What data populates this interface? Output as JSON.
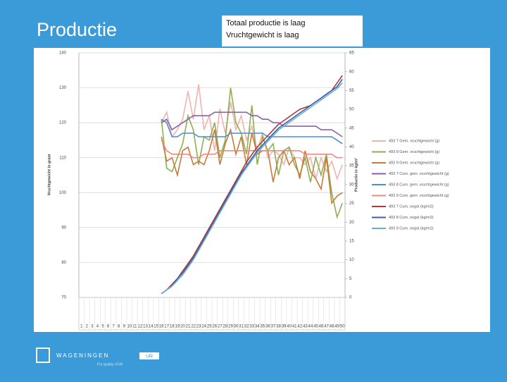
{
  "chart_data": {
    "type": "line",
    "title": "Productie",
    "annotations": [
      "Totaal productie is laag",
      "Vruchtgewicht is laag"
    ],
    "ylabel": "Vruchtgewicht in gram",
    "y2label": "Productie in kg/m²",
    "categories": [
      "1",
      "2",
      "3",
      "4",
      "5",
      "6",
      "7",
      "8",
      "9",
      "10",
      "11",
      "12",
      "13",
      "14",
      "15",
      "16",
      "17",
      "18",
      "19",
      "20",
      "21",
      "22",
      "23",
      "24",
      "25",
      "26",
      "27",
      "28",
      "29",
      "30",
      "31",
      "32",
      "33",
      "34",
      "35",
      "36",
      "37",
      "38",
      "39",
      "40",
      "41",
      "42",
      "43",
      "44",
      "45",
      "46",
      "47",
      "48",
      "49",
      "50"
    ],
    "ylim": [
      70,
      140
    ],
    "yticks": [
      70,
      80,
      90,
      100,
      110,
      120,
      130,
      140
    ],
    "y2lim": [
      0,
      65
    ],
    "y2ticks": [
      0,
      5,
      10,
      15,
      20,
      25,
      30,
      35,
      40,
      45,
      50,
      55,
      60,
      65
    ],
    "grid": true,
    "series": [
      {
        "name": "493 7 Gem. vruchtgewicht (g)",
        "color": "#f0b4b0",
        "values": [
          null,
          null,
          null,
          null,
          null,
          null,
          null,
          null,
          null,
          null,
          null,
          null,
          null,
          null,
          null,
          120,
          123,
          116,
          118,
          121,
          129,
          121,
          131,
          118,
          122,
          112,
          124,
          117,
          126,
          118,
          122,
          115,
          119,
          112,
          117,
          110,
          112,
          111,
          108,
          113,
          110,
          110,
          108,
          110,
          104,
          110,
          106,
          109,
          104,
          108
        ]
      },
      {
        "name": "493 8 Gem. vruchtgewicht (g)",
        "color": "#8cb050",
        "values": [
          null,
          null,
          null,
          null,
          null,
          null,
          null,
          null,
          null,
          null,
          null,
          null,
          null,
          null,
          null,
          121,
          107,
          106,
          110,
          114,
          122,
          118,
          108,
          116,
          115,
          120,
          110,
          115,
          130,
          120,
          117,
          111,
          125,
          108,
          116,
          112,
          114,
          105,
          112,
          113,
          108,
          105,
          110,
          103,
          110,
          105,
          111,
          100,
          93,
          97
        ]
      },
      {
        "name": "493 9 Gem. vruchtgewicht (g)",
        "color": "#c87a3c",
        "values": [
          null,
          null,
          null,
          null,
          null,
          null,
          null,
          null,
          null,
          null,
          null,
          null,
          null,
          null,
          null,
          116,
          109,
          110,
          105,
          112,
          113,
          108,
          109,
          108,
          112,
          118,
          108,
          114,
          118,
          111,
          116,
          108,
          117,
          111,
          112,
          112,
          103,
          110,
          112,
          108,
          110,
          104,
          112,
          106,
          104,
          101,
          110,
          97,
          99,
          100
        ]
      },
      {
        "name": "493 7 Cum. gem. vruchtgewicht (g)",
        "color": "#8a62a8",
        "values": [
          null,
          null,
          null,
          null,
          null,
          null,
          null,
          null,
          null,
          null,
          null,
          null,
          null,
          null,
          null,
          120,
          121,
          118,
          119,
          120,
          121,
          122,
          122,
          122,
          122,
          123,
          123,
          123,
          123,
          123,
          123,
          123,
          122,
          122,
          121,
          121,
          120,
          120,
          119,
          119,
          119,
          119,
          119,
          119,
          119,
          118,
          118,
          118,
          117,
          116
        ]
      },
      {
        "name": "493 8 Cum. gem. vruchtgewicht (g)",
        "color": "#4a8ed0",
        "values": [
          null,
          null,
          null,
          null,
          null,
          null,
          null,
          null,
          null,
          null,
          null,
          null,
          null,
          null,
          null,
          121,
          120,
          116,
          116,
          117,
          117,
          117,
          116,
          116,
          116,
          116,
          116,
          116,
          117,
          117,
          117,
          117,
          117,
          117,
          117,
          116,
          116,
          116,
          116,
          116,
          116,
          116,
          116,
          116,
          116,
          116,
          116,
          116,
          115,
          114
        ]
      },
      {
        "name": "493 9 Cum. gem. vruchtgewicht (g)",
        "color": "#f08a80",
        "values": [
          null,
          null,
          null,
          null,
          null,
          null,
          null,
          null,
          null,
          null,
          null,
          null,
          null,
          null,
          null,
          115,
          112,
          111,
          111,
          111,
          111,
          110,
          110,
          111,
          111,
          111,
          112,
          112,
          112,
          112,
          112,
          112,
          112,
          112,
          112,
          112,
          112,
          112,
          112,
          112,
          112,
          112,
          111,
          111,
          111,
          111,
          111,
          111,
          110,
          110
        ]
      },
      {
        "name": "493 7 Cum. oogst (kg/m2)",
        "color": "#b03a3a",
        "axis": "y2",
        "values": [
          null,
          null,
          null,
          null,
          null,
          null,
          null,
          null,
          null,
          null,
          null,
          null,
          null,
          null,
          null,
          1,
          2,
          3.5,
          5,
          7,
          9,
          11,
          13.5,
          16,
          18.5,
          21,
          23.5,
          26,
          28.5,
          31,
          33.5,
          36,
          38,
          40,
          41.5,
          43,
          44.5,
          46,
          47,
          48,
          49,
          50,
          50.5,
          51,
          52,
          53,
          54,
          55,
          57,
          59
        ]
      },
      {
        "name": "493 8 Cum. oogst (kg/m2)",
        "color": "#3f5fa0",
        "axis": "y2",
        "values": [
          null,
          null,
          null,
          null,
          null,
          null,
          null,
          null,
          null,
          null,
          null,
          null,
          null,
          null,
          null,
          1,
          2,
          3,
          5,
          6.5,
          8.5,
          10.5,
          13,
          15.5,
          18,
          20.5,
          23,
          25.5,
          28,
          30.5,
          33,
          35,
          37,
          39,
          40.5,
          42,
          43.5,
          45,
          46,
          47,
          48,
          49,
          50,
          51,
          52,
          53,
          54,
          55,
          56,
          58
        ]
      },
      {
        "name": "493 9 Cum. oogst (kg/m2)",
        "color": "#66aee0",
        "axis": "y2",
        "values": [
          null,
          null,
          null,
          null,
          null,
          null,
          null,
          null,
          null,
          null,
          null,
          null,
          null,
          null,
          null,
          1,
          2,
          3,
          4.5,
          6,
          8,
          10,
          12.5,
          15,
          17.5,
          20,
          22.5,
          25,
          27.5,
          30,
          32.5,
          34.5,
          36.5,
          38.5,
          40,
          41.5,
          43,
          44.5,
          45.5,
          46.5,
          47.5,
          48.5,
          49.5,
          50.5,
          51.5,
          52.5,
          53.5,
          54.5,
          55.5,
          57
        ]
      }
    ]
  },
  "footer": {
    "logo": "WAGENINGEN",
    "logo_suffix": "UR",
    "tagline": "For quality of life"
  }
}
